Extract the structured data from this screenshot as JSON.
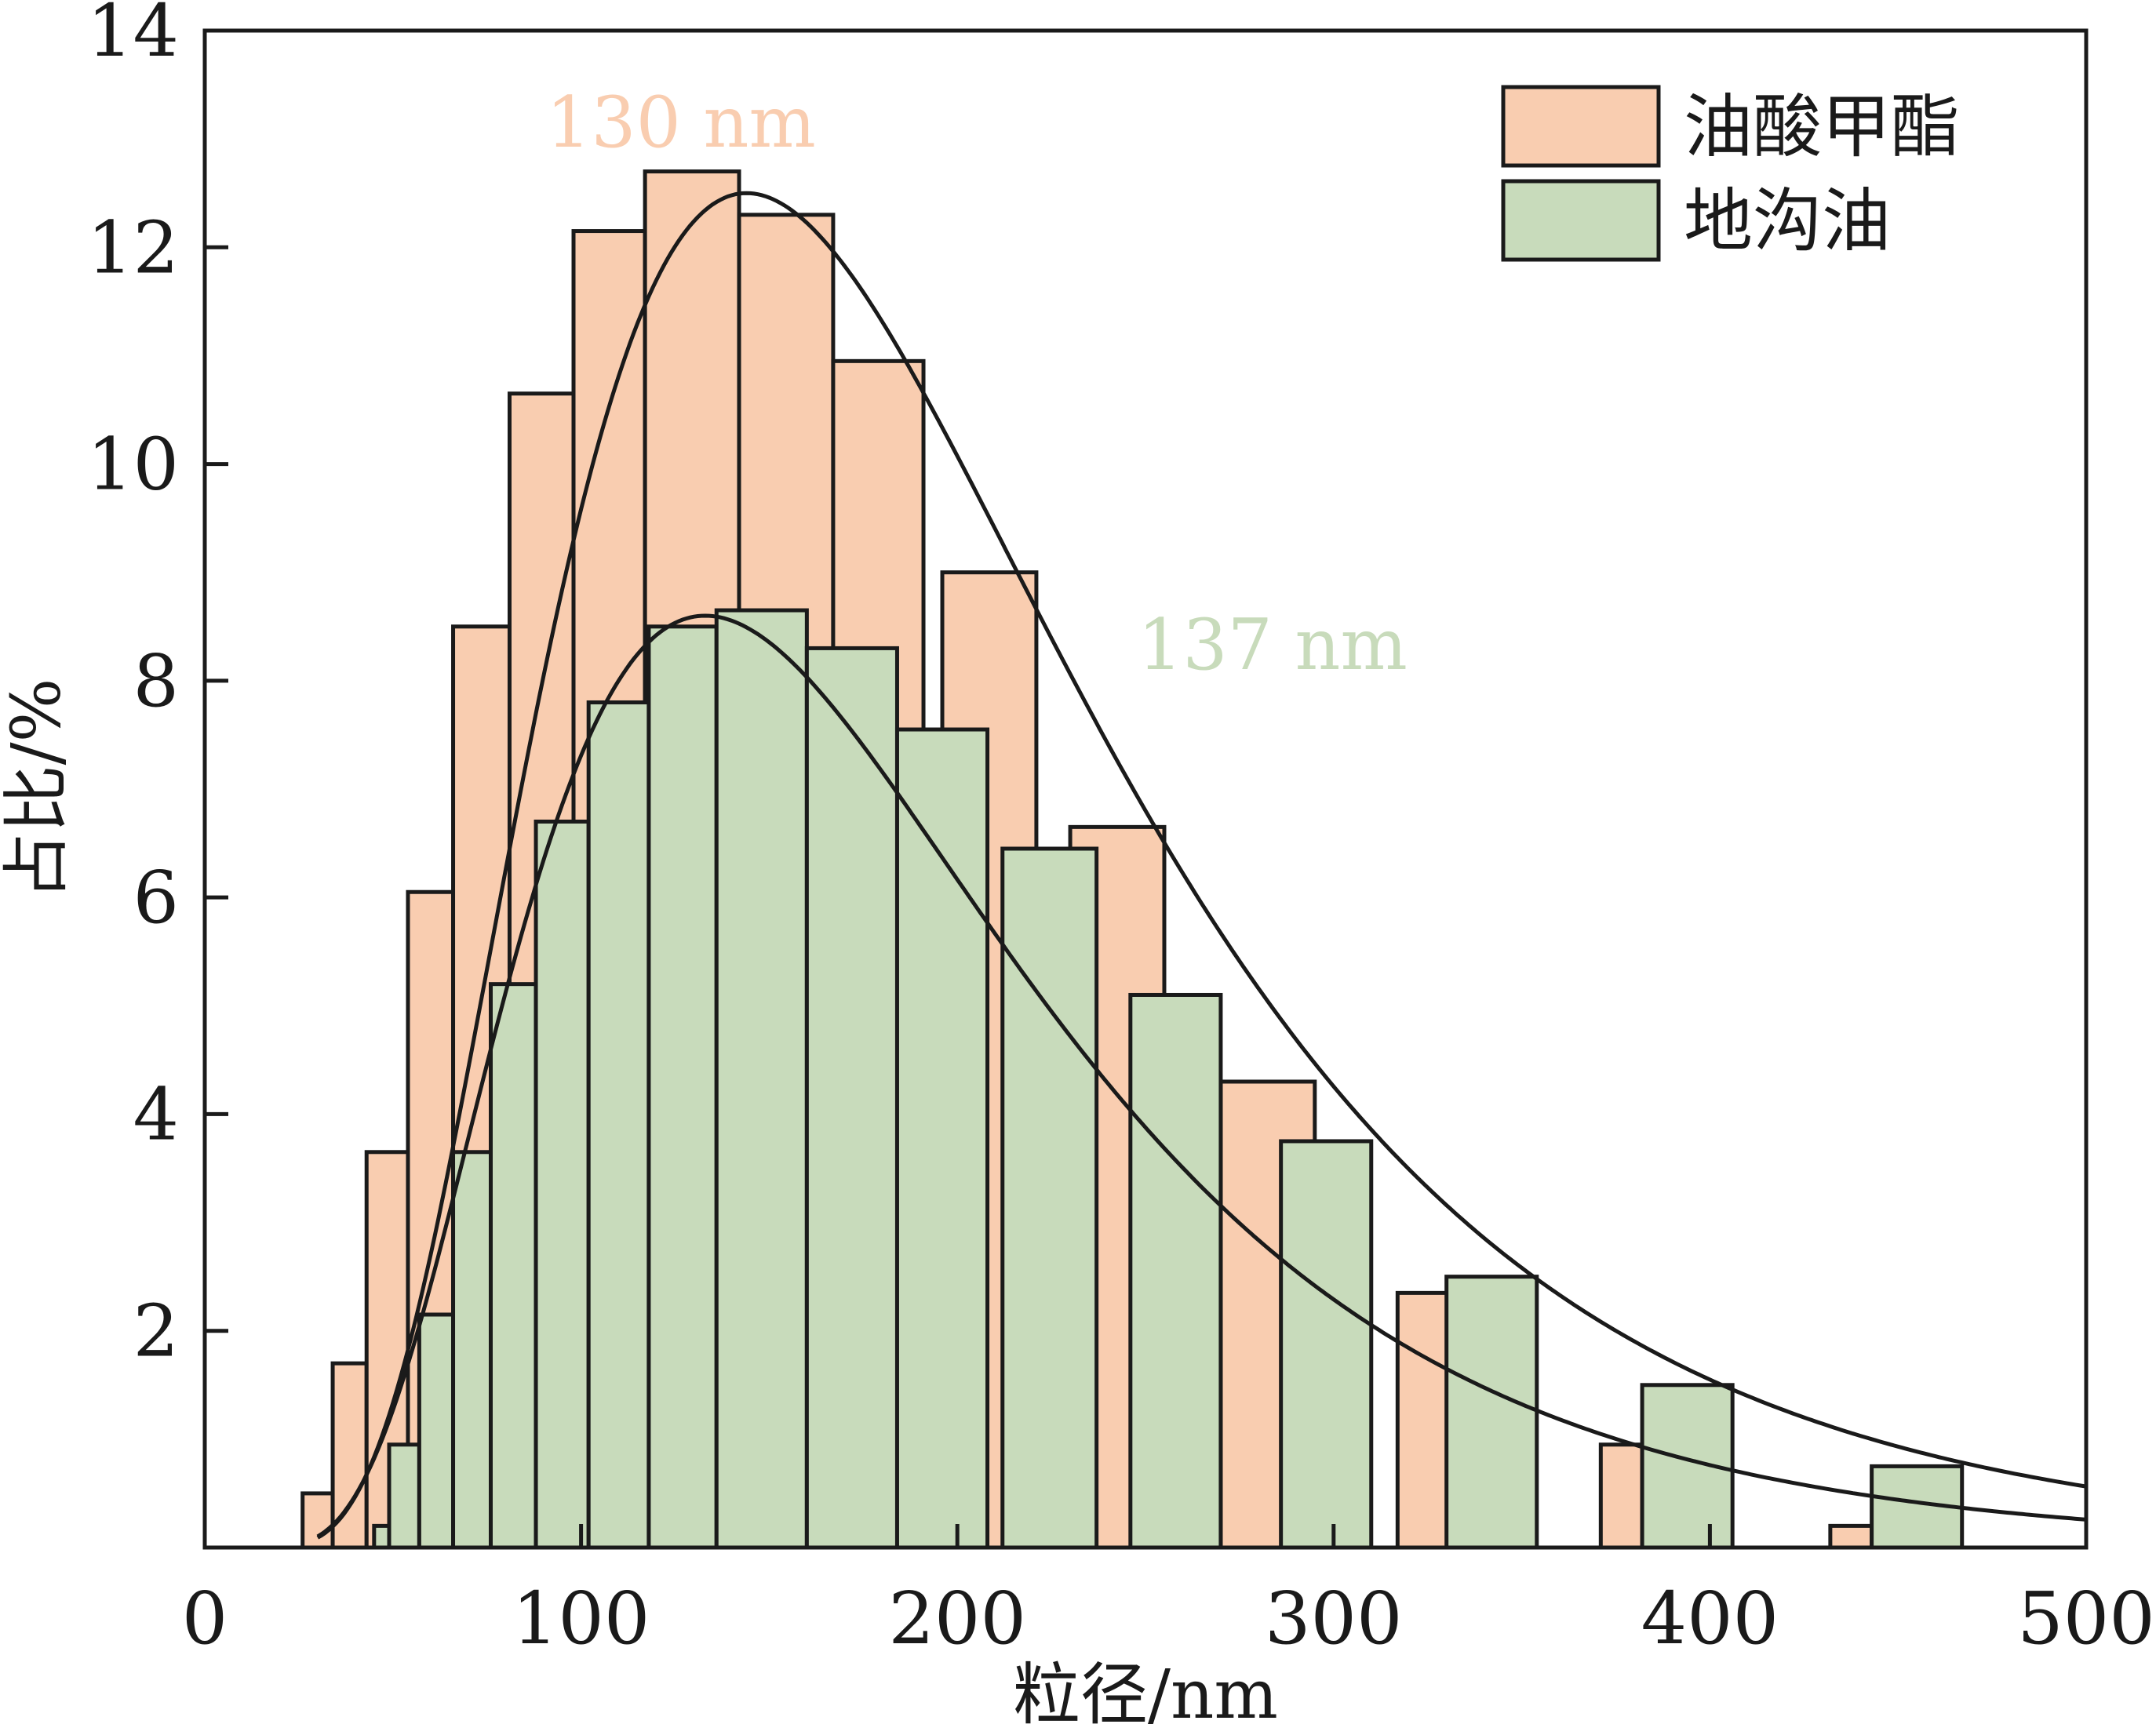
{
  "chart_data": {
    "type": "bar",
    "xlabel": "粒径/nm",
    "ylabel": "占比/%",
    "xlim": [
      0,
      500
    ],
    "ylim": [
      0,
      14
    ],
    "xticks": [
      0,
      100,
      200,
      300,
      400,
      500
    ],
    "yticks": [
      2,
      4,
      6,
      8,
      10,
      12,
      14
    ],
    "grid": false,
    "legend_position": "top-right",
    "series": [
      {
        "name": "油酸甲酯",
        "color": "#f9cdb0",
        "bars": [
          {
            "x0": 26,
            "x1": 34,
            "y": 0.5
          },
          {
            "x0": 34,
            "x1": 43,
            "y": 1.7
          },
          {
            "x0": 43,
            "x1": 54,
            "y": 3.65
          },
          {
            "x0": 54,
            "x1": 66,
            "y": 6.05
          },
          {
            "x0": 66,
            "x1": 81,
            "y": 8.5
          },
          {
            "x0": 81,
            "x1": 98,
            "y": 10.65
          },
          {
            "x0": 98,
            "x1": 117,
            "y": 12.15
          },
          {
            "x0": 117,
            "x1": 142,
            "y": 12.7
          },
          {
            "x0": 142,
            "x1": 167,
            "y": 12.3
          },
          {
            "x0": 167,
            "x1": 191,
            "y": 10.95
          },
          {
            "x0": 196,
            "x1": 221,
            "y": 9.0
          },
          {
            "x0": 230,
            "x1": 255,
            "y": 6.65
          },
          {
            "x0": 270,
            "x1": 295,
            "y": 4.3
          },
          {
            "x0": 317,
            "x1": 340,
            "y": 2.35
          },
          {
            "x0": 371,
            "x1": 382,
            "y": 0.95
          },
          {
            "x0": 432,
            "x1": 443,
            "y": 0.2
          }
        ],
        "fit_curve": {
          "peak_x": 144,
          "peak_y": 12.5
        },
        "annotation": "130 nm"
      },
      {
        "name": "地沟油",
        "color": "#c8dbbb",
        "bars": [
          {
            "x0": 45,
            "x1": 49,
            "y": 0.2
          },
          {
            "x0": 49,
            "x1": 57,
            "y": 0.95
          },
          {
            "x0": 57,
            "x1": 66,
            "y": 2.15
          },
          {
            "x0": 66,
            "x1": 76,
            "y": 3.65
          },
          {
            "x0": 76,
            "x1": 88,
            "y": 5.2
          },
          {
            "x0": 88,
            "x1": 102,
            "y": 6.7
          },
          {
            "x0": 102,
            "x1": 118,
            "y": 7.8
          },
          {
            "x0": 118,
            "x1": 136,
            "y": 8.5
          },
          {
            "x0": 136,
            "x1": 160,
            "y": 8.65
          },
          {
            "x0": 160,
            "x1": 184,
            "y": 8.3
          },
          {
            "x0": 184,
            "x1": 208,
            "y": 7.55
          },
          {
            "x0": 212,
            "x1": 237,
            "y": 6.45
          },
          {
            "x0": 246,
            "x1": 270,
            "y": 5.1
          },
          {
            "x0": 286,
            "x1": 310,
            "y": 3.75
          },
          {
            "x0": 330,
            "x1": 354,
            "y": 2.5
          },
          {
            "x0": 382,
            "x1": 406,
            "y": 1.5
          },
          {
            "x0": 443,
            "x1": 467,
            "y": 0.75
          }
        ],
        "fit_curve": {
          "peak_x": 133,
          "peak_y": 8.6
        },
        "annotation": "137 nm"
      }
    ]
  }
}
